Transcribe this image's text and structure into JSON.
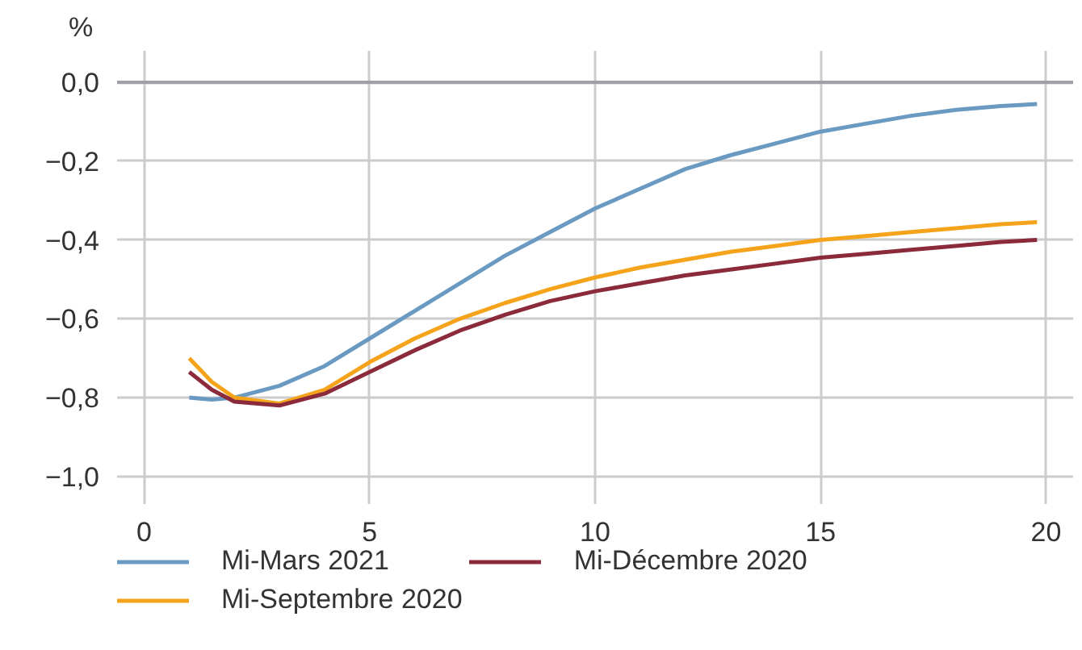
{
  "chart_data": {
    "type": "line",
    "ylabel": "%",
    "x": [
      1,
      1.5,
      2,
      3,
      4,
      5,
      6,
      7,
      8,
      9,
      10,
      11,
      12,
      13,
      14,
      15,
      16,
      17,
      18,
      19,
      19.8
    ],
    "series": [
      {
        "name": "Mi-Mars 2021",
        "color": "#6a9ac2",
        "values": [
          -0.8,
          -0.805,
          -0.8,
          -0.77,
          -0.72,
          -0.65,
          -0.58,
          -0.51,
          -0.44,
          -0.38,
          -0.32,
          -0.27,
          -0.22,
          -0.185,
          -0.155,
          -0.125,
          -0.105,
          -0.085,
          -0.07,
          -0.06,
          -0.055
        ]
      },
      {
        "name": "Mi-Septembre 2020",
        "color": "#f5a31b",
        "values": [
          -0.7,
          -0.76,
          -0.8,
          -0.815,
          -0.78,
          -0.71,
          -0.65,
          -0.6,
          -0.56,
          -0.525,
          -0.495,
          -0.47,
          -0.45,
          -0.43,
          -0.415,
          -0.4,
          -0.39,
          -0.38,
          -0.37,
          -0.36,
          -0.355
        ]
      },
      {
        "name": "Mi-Décembre 2020",
        "color": "#8b2a3a",
        "values": [
          -0.735,
          -0.78,
          -0.81,
          -0.82,
          -0.79,
          -0.735,
          -0.68,
          -0.63,
          -0.59,
          -0.555,
          -0.53,
          -0.51,
          -0.49,
          -0.475,
          -0.46,
          -0.445,
          -0.435,
          -0.425,
          -0.415,
          -0.405,
          -0.4
        ]
      }
    ],
    "xlim": [
      -0.6,
      20.6
    ],
    "ylim": [
      -1.07,
      0.08
    ],
    "xticks": [
      0,
      5,
      10,
      15,
      20
    ],
    "yticks": [
      {
        "value": 0,
        "label": "0,0"
      },
      {
        "value": -0.2,
        "label": "−0,2"
      },
      {
        "value": -0.4,
        "label": "−0,4"
      },
      {
        "value": -0.6,
        "label": "−0,6"
      },
      {
        "value": -0.8,
        "label": "−0,8"
      },
      {
        "value": -1.0,
        "label": "−1,0"
      }
    ],
    "ref_lines": [
      {
        "axis": "y",
        "value": 0,
        "color": "#a0a0a8"
      }
    ],
    "grid": true,
    "legend": "bottom",
    "marker": "none",
    "line_style": "solid"
  }
}
